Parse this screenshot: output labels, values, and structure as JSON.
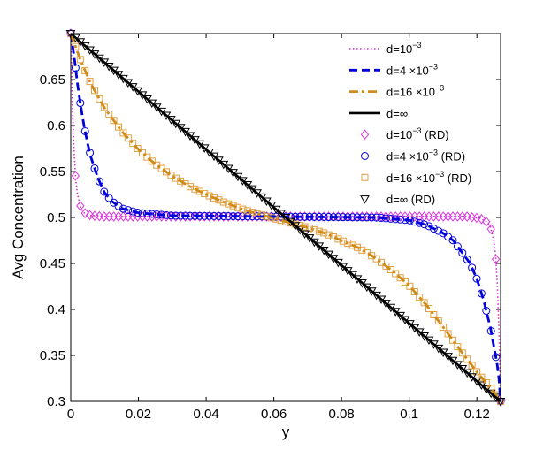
{
  "chart_data": {
    "type": "line",
    "title": "",
    "xlabel": "y",
    "ylabel": "Avg Concentration",
    "xlim": [
      0,
      0.127
    ],
    "ylim": [
      0.3,
      0.7
    ],
    "xticks": [
      "0",
      "0.02",
      "0.04",
      "0.06",
      "0.08",
      "0.1",
      "0.12"
    ],
    "yticks": [
      "0.3",
      "0.35",
      "0.4",
      "0.45",
      "0.5",
      "0.55",
      "0.6",
      "0.65"
    ],
    "grid": false,
    "legend_position": "top-right",
    "series": [
      {
        "name": "d=10⁻³",
        "style": "dotted",
        "color": "#cc33cc",
        "x": [
          0,
          0.0005,
          0.001,
          0.0015,
          0.002,
          0.003,
          0.004,
          0.006,
          0.01,
          0.03,
          0.06,
          0.09,
          0.117,
          0.121,
          0.123,
          0.124,
          0.125,
          0.1255,
          0.126,
          0.1265,
          0.127
        ],
        "y": [
          0.7,
          0.62,
          0.57,
          0.54,
          0.525,
          0.51,
          0.505,
          0.502,
          0.501,
          0.501,
          0.501,
          0.501,
          0.501,
          0.499,
          0.495,
          0.49,
          0.475,
          0.46,
          0.43,
          0.38,
          0.3
        ]
      },
      {
        "name": "d=4×10⁻³",
        "style": "dashed",
        "color": "#0000dd",
        "x": [
          0,
          0.001,
          0.002,
          0.003,
          0.004,
          0.005,
          0.006,
          0.008,
          0.01,
          0.012,
          0.015,
          0.02,
          0.03,
          0.06,
          0.09,
          0.1,
          0.105,
          0.11,
          0.113,
          0.116,
          0.118,
          0.12,
          0.122,
          0.124,
          0.125,
          0.126,
          0.1265,
          0.127
        ],
        "y": [
          0.7,
          0.675,
          0.645,
          0.62,
          0.598,
          0.58,
          0.565,
          0.543,
          0.527,
          0.518,
          0.51,
          0.505,
          0.502,
          0.501,
          0.5,
          0.497,
          0.492,
          0.483,
          0.475,
          0.46,
          0.45,
          0.433,
          0.41,
          0.38,
          0.36,
          0.34,
          0.325,
          0.3
        ]
      },
      {
        "name": "d=16×10⁻³",
        "style": "dashdot",
        "color": "#d08a1a",
        "x": [
          0,
          0.003,
          0.006,
          0.01,
          0.015,
          0.02,
          0.025,
          0.03,
          0.035,
          0.04,
          0.045,
          0.05,
          0.055,
          0.06,
          0.065,
          0.07,
          0.075,
          0.08,
          0.085,
          0.09,
          0.095,
          0.1,
          0.105,
          0.11,
          0.115,
          0.12,
          0.124,
          0.127
        ],
        "y": [
          0.7,
          0.67,
          0.645,
          0.619,
          0.594,
          0.574,
          0.558,
          0.545,
          0.534,
          0.525,
          0.517,
          0.51,
          0.504,
          0.499,
          0.494,
          0.489,
          0.483,
          0.475,
          0.467,
          0.456,
          0.442,
          0.426,
          0.405,
          0.381,
          0.356,
          0.332,
          0.315,
          0.3
        ]
      },
      {
        "name": "d=∞",
        "style": "solid",
        "color": "#000000",
        "x": [
          0,
          0.127
        ],
        "y": [
          0.7,
          0.3
        ]
      },
      {
        "name": "d=10⁻³ (RD)",
        "marker": "diamond",
        "color": "#dd33dd",
        "curve": 0
      },
      {
        "name": "d=4 ×10⁻³ (RD)",
        "marker": "circle",
        "color": "#0000dd",
        "curve": 1
      },
      {
        "name": "d=16×10⁻³ (RD)",
        "marker": "square",
        "color": "#e0a040",
        "curve": 2
      },
      {
        "name": "d=∞ (RD)",
        "marker": "triangle-down",
        "color": "#000000",
        "curve": 3
      }
    ]
  },
  "legend": {
    "entries": [
      {
        "label": "d=10",
        "sup": "−3",
        "suffix": ""
      },
      {
        "label": "d=4 ×10",
        "sup": "−3",
        "suffix": ""
      },
      {
        "label": "d=16 ×10",
        "sup": "−3",
        "suffix": ""
      },
      {
        "label": "d=∞",
        "sup": "",
        "suffix": ""
      },
      {
        "label": "d=10",
        "sup": "−3",
        "suffix": " (RD)"
      },
      {
        "label": "d=4  ×10",
        "sup": "−3",
        "suffix": " (RD)"
      },
      {
        "label": "d=16 ×10",
        "sup": "−3",
        "suffix": " (RD)"
      },
      {
        "label": "d=∞",
        "sup": "",
        "suffix": " (RD)"
      }
    ]
  }
}
